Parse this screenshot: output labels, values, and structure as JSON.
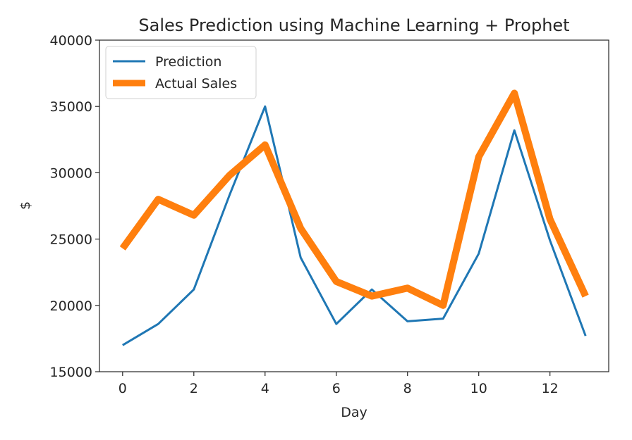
{
  "chart_data": {
    "type": "line",
    "title": "Sales Prediction using Machine Learning + Prophet",
    "xlabel": "Day",
    "ylabel": "$",
    "xlim": [
      -0.65,
      13.65
    ],
    "ylim": [
      15000,
      40000
    ],
    "x_ticks": [
      0,
      2,
      4,
      6,
      8,
      10,
      12
    ],
    "y_ticks": [
      15000,
      20000,
      25000,
      30000,
      35000,
      40000
    ],
    "x": [
      0,
      1,
      2,
      3,
      4,
      5,
      6,
      7,
      8,
      9,
      10,
      11,
      12,
      13
    ],
    "series": [
      {
        "name": "Prediction",
        "color": "#1f77b4",
        "style": "thin",
        "values": [
          17000,
          18600,
          21200,
          28300,
          35000,
          23600,
          18600,
          21200,
          18800,
          19000,
          23900,
          33200,
          24900,
          17700
        ]
      },
      {
        "name": "Actual Sales",
        "color": "#ff7f0e",
        "style": "thick",
        "values": [
          24300,
          28000,
          26800,
          29800,
          32100,
          25800,
          21800,
          20700,
          21300,
          20000,
          31200,
          36000,
          26500,
          20700
        ]
      }
    ],
    "legend_position": "top-left",
    "grid": false
  }
}
